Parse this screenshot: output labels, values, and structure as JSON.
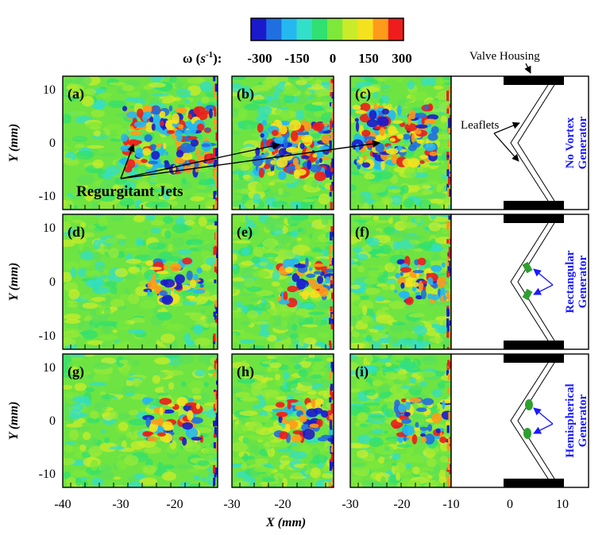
{
  "figure": {
    "colorbar": {
      "label_symbol": "ω (",
      "label_unit": "s",
      "label_exp": "-1",
      "label_close": "):",
      "tick_labels": [
        "-300",
        "-150",
        "0",
        "150",
        "300"
      ],
      "colors": [
        "#1a1acc",
        "#1f6fe0",
        "#25b8f0",
        "#33dfc8",
        "#30e070",
        "#7ee83a",
        "#c9ec2a",
        "#f4e21f",
        "#ff9a1a",
        "#ee1c1c"
      ]
    },
    "panel_labels": [
      "(a)",
      "(b)",
      "(c)",
      "(d)",
      "(e)",
      "(f)",
      "(g)",
      "(h)",
      "(i)"
    ],
    "row_labels": [
      [
        "No Vortex",
        "Generator"
      ],
      [
        "Rectangular",
        "Generator"
      ],
      [
        "Hemispherical",
        "Generator"
      ]
    ],
    "annotations": {
      "valve_housing": "Valve Housing",
      "leaflets": "Leaflets",
      "regurgitant_jets": "Regurgitant Jets"
    },
    "x_axis": {
      "label": "X (mm)",
      "tick_labels": [
        "-40",
        "-30",
        "-20",
        "-30",
        "-20",
        "-30",
        "-20",
        "-10",
        "0",
        "10"
      ]
    },
    "y_axis": {
      "label": "Y (mm)",
      "tick_labels": [
        "10",
        "0",
        "-10"
      ]
    }
  },
  "chart_data": {
    "type": "heatmap",
    "quantity": "vorticity ω (s^-1)",
    "color_range": [
      -300,
      300
    ],
    "colorbar_ticks": [
      -300,
      -150,
      0,
      150,
      300
    ],
    "rows": [
      "No Vortex Generator",
      "Rectangular Generator",
      "Hemispherical Generator"
    ],
    "panels": [
      "(a)",
      "(b)",
      "(c)",
      "(d)",
      "(e)",
      "(f)",
      "(g)",
      "(h)",
      "(i)"
    ],
    "columns_xlim": [
      [
        -40,
        -12
      ],
      [
        -30,
        -12
      ],
      [
        -30,
        -12
      ]
    ],
    "schematic_xlim": [
      -12,
      15
    ],
    "ylim": [
      -12.5,
      12.5
    ],
    "yticks": [
      10,
      0,
      -10
    ],
    "xlabel": "X (mm)",
    "ylabel": "Y (mm)"
  }
}
